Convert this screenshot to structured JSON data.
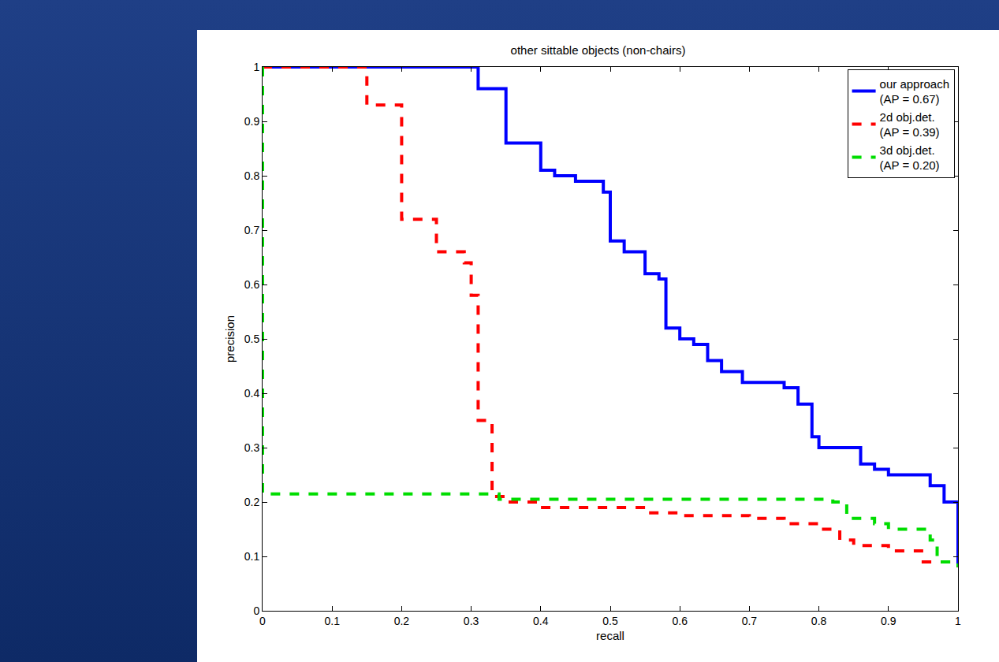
{
  "chart_data": {
    "type": "line",
    "title": "other sittable objects (non-chairs)",
    "x_label": "recall",
    "y_label": "precision",
    "xlim": [
      0,
      1
    ],
    "ylim": [
      0,
      1
    ],
    "xticks": [
      0,
      0.1,
      0.2,
      0.3,
      0.4,
      0.5,
      0.6,
      0.7,
      0.8,
      0.9,
      1
    ],
    "yticks": [
      0,
      0.1,
      0.2,
      0.3,
      0.4,
      0.5,
      0.6,
      0.7,
      0.8,
      0.9,
      1
    ],
    "grid": false,
    "legend": "upper right",
    "series": [
      {
        "name": "our approach\n(AP = 0.67)",
        "color": "#0000ff",
        "line_style": "solid",
        "x": [
          0,
          0.31,
          0.35,
          0.4,
          0.42,
          0.45,
          0.49,
          0.5,
          0.52,
          0.55,
          0.57,
          0.58,
          0.6,
          0.62,
          0.64,
          0.66,
          0.69,
          0.75,
          0.77,
          0.79,
          0.8,
          0.86,
          0.88,
          0.9,
          0.96,
          0.98,
          1.0
        ],
        "values": [
          1,
          0.96,
          0.86,
          0.81,
          0.8,
          0.79,
          0.77,
          0.68,
          0.66,
          0.62,
          0.61,
          0.52,
          0.5,
          0.49,
          0.46,
          0.44,
          0.42,
          0.41,
          0.38,
          0.32,
          0.3,
          0.27,
          0.26,
          0.25,
          0.23,
          0.2,
          0.08
        ]
      },
      {
        "name": "2d obj.det.\n(AP = 0.39)",
        "color": "#ff0000",
        "line_style": "dashed",
        "x": [
          0,
          0.15,
          0.2,
          0.25,
          0.29,
          0.3,
          0.31,
          0.33,
          0.35,
          0.4,
          0.55,
          0.6,
          0.7,
          0.75,
          0.8,
          0.83,
          0.85,
          0.9,
          0.95,
          1.0
        ],
        "values": [
          1,
          0.93,
          0.72,
          0.66,
          0.64,
          0.58,
          0.35,
          0.21,
          0.2,
          0.19,
          0.18,
          0.175,
          0.17,
          0.16,
          0.15,
          0.13,
          0.12,
          0.11,
          0.09,
          0.08
        ]
      },
      {
        "name": "3d obj.det.\n(AP = 0.20)",
        "color": "#00dd00",
        "line_style": "dashed",
        "x": [
          0,
          0,
          0.34,
          0.82,
          0.84,
          0.88,
          0.9,
          0.96,
          0.97,
          1.0
        ],
        "values": [
          1,
          0.215,
          0.205,
          0.2,
          0.17,
          0.16,
          0.15,
          0.13,
          0.09,
          0.08
        ]
      }
    ]
  }
}
